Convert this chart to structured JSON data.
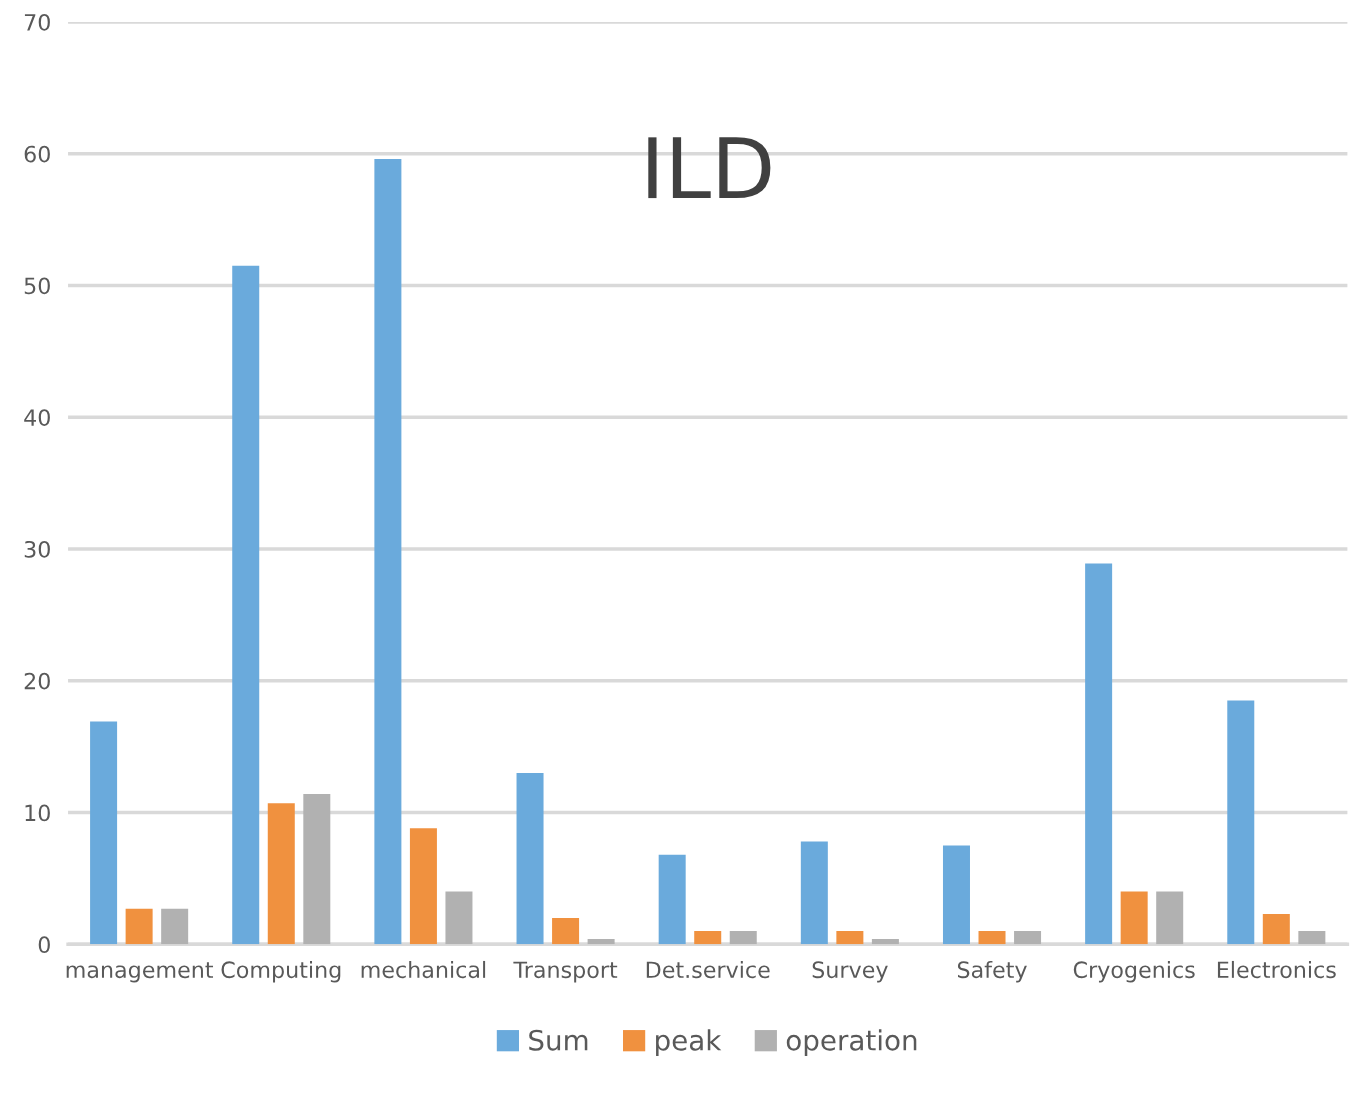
{
  "chart_data": {
    "type": "bar",
    "title": "ILD",
    "categories": [
      "management",
      "Computing",
      "mechanical",
      "Transport",
      "Det.service",
      "Survey",
      "Safety",
      "Cryogenics",
      "Electronics"
    ],
    "series": [
      {
        "name": "Sum",
        "color": "#6aaadc",
        "values": [
          16.9,
          51.5,
          59.6,
          13.0,
          6.8,
          7.8,
          7.5,
          28.9,
          18.5
        ]
      },
      {
        "name": "peak",
        "color": "#f0913f",
        "values": [
          2.7,
          10.7,
          8.8,
          2.0,
          1.0,
          1.0,
          1.0,
          4.0,
          2.3
        ]
      },
      {
        "name": "operation",
        "color": "#b1b1b1",
        "values": [
          2.7,
          11.4,
          4.0,
          0.4,
          1.0,
          0.4,
          1.0,
          4.0,
          1.0
        ]
      }
    ],
    "ylim": [
      0,
      70
    ],
    "yticks": [
      0,
      10,
      20,
      30,
      40,
      50,
      60,
      70
    ],
    "grid": "y",
    "legend": "bottom"
  }
}
